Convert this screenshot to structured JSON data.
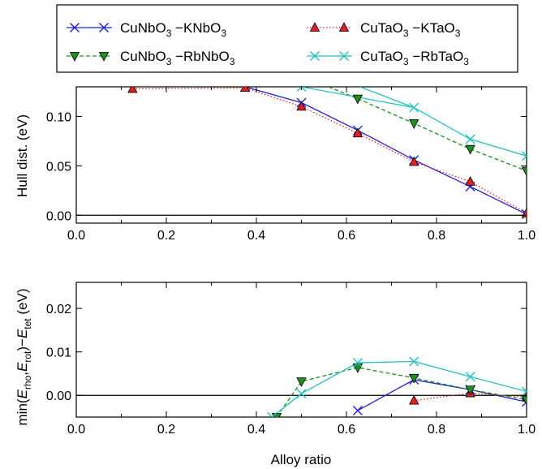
{
  "legend": {
    "entries": [
      {
        "formula_a": "CuNbO",
        "sub_a": "3",
        "sep": " −",
        "formula_b": "KNbO",
        "sub_b": "3",
        "color": "#1f1fd6",
        "marker": "x",
        "dash": "solid"
      },
      {
        "formula_a": "CuTaO",
        "sub_a": "3",
        "sep": " −",
        "formula_b": "KTaO",
        "sub_b": "3",
        "color": "#e02020",
        "marker": "triangle-up",
        "dash": "dotted"
      },
      {
        "formula_a": "CuNbO",
        "sub_a": "3",
        "sep": " −",
        "formula_b": "RbNbO",
        "sub_b": "3",
        "color": "#1f8f1f",
        "marker": "triangle-down",
        "dash": "dashed"
      },
      {
        "formula_a": "CuTaO",
        "sub_a": "3",
        "sep": " −",
        "formula_b": "RbTaO",
        "sub_b": "3",
        "color": "#22c2c2",
        "marker": "x",
        "dash": "solid"
      }
    ]
  },
  "chart_data": [
    {
      "type": "line",
      "xlabel": "",
      "ylabel": "Hull dist. (eV)",
      "xlim": [
        0.0,
        1.0
      ],
      "ylim": [
        -0.008,
        0.13
      ],
      "xticks": [
        "0.0",
        "0.2",
        "0.4",
        "0.6",
        "0.8",
        "1.0"
      ],
      "yticks": [
        "0.00",
        "0.05",
        "0.10"
      ],
      "series": [
        {
          "name": "CuNbO3−KNbO3",
          "color": "#1f1fd6",
          "marker": "x",
          "dash": "solid",
          "x": [
            0.375,
            0.5,
            0.625,
            0.75,
            0.875,
            1.0
          ],
          "y": [
            0.13,
            0.114,
            0.086,
            0.056,
            0.029,
            0.001
          ]
        },
        {
          "name": "CuTaO3−KTaO3",
          "color": "#e02020",
          "marker": "triangle-up",
          "dash": "dotted",
          "x": [
            0.125,
            0.375,
            0.5,
            0.625,
            0.75,
            0.875,
            1.0
          ],
          "y": [
            0.128,
            0.129,
            0.11,
            0.083,
            0.054,
            0.034,
            0.002
          ]
        },
        {
          "name": "CuNbO3−RbNbO3",
          "color": "#1f8f1f",
          "marker": "triangle-down",
          "dash": "dashed",
          "x": [
            0.625,
            0.75,
            0.875,
            1.0
          ],
          "y": [
            0.118,
            0.093,
            0.067,
            0.045
          ]
        },
        {
          "name": "CuTaO3−RbTaO3",
          "color": "#22c2c2",
          "marker": "x",
          "dash": "solid",
          "x": [
            0.5,
            0.75,
            0.875,
            1.0
          ],
          "y": [
            0.13,
            0.109,
            0.077,
            0.06
          ]
        }
      ],
      "extra_segments": [
        {
          "series": 2,
          "x": [
            0.56,
            0.625
          ],
          "y": [
            0.13,
            0.118
          ]
        },
        {
          "series": 3,
          "x": [
            0.63,
            0.75
          ],
          "y": [
            0.13,
            0.109
          ]
        }
      ],
      "hline": 0.0
    },
    {
      "type": "line",
      "xlabel": "Alloy ratio",
      "ylabel": "min(E_rho,E_rot)−E_tet (eV)",
      "xlim": [
        0.0,
        1.0
      ],
      "ylim": [
        -0.005,
        0.026
      ],
      "xticks": [
        "0.0",
        "0.2",
        "0.4",
        "0.6",
        "0.8",
        "1.0"
      ],
      "yticks": [
        "0.00",
        "0.01",
        "0.02"
      ],
      "series": [
        {
          "name": "CuNbO3−KNbO3",
          "color": "#1f1fd6",
          "marker": "x",
          "dash": "solid",
          "x": [
            0.625,
            0.75,
            0.875,
            1.0
          ],
          "y": [
            -0.0035,
            0.0036,
            0.0013,
            -0.0015
          ]
        },
        {
          "name": "CuTaO3−KTaO3",
          "color": "#e02020",
          "marker": "triangle-up",
          "dash": "dotted",
          "x": [
            0.75,
            0.875,
            1.0
          ],
          "y": [
            -0.0012,
            0.0005,
            -0.0004
          ]
        },
        {
          "name": "CuNbO3−RbNbO3",
          "color": "#1f8f1f",
          "marker": "triangle-down",
          "dash": "dashed",
          "x": [
            0.445,
            0.5,
            0.625,
            0.75,
            0.875,
            1.0
          ],
          "y": [
            -0.005,
            0.0032,
            0.0064,
            0.004,
            0.0013,
            -0.001
          ]
        },
        {
          "name": "CuTaO3−RbTaO3",
          "color": "#22c2c2",
          "marker": "x",
          "dash": "solid",
          "x": [
            0.435,
            0.5,
            0.625,
            0.75,
            0.875,
            1.0
          ],
          "y": [
            -0.005,
            0.0004,
            0.0075,
            0.0078,
            0.0043,
            0.0009
          ]
        }
      ],
      "hline": 0.0
    }
  ]
}
